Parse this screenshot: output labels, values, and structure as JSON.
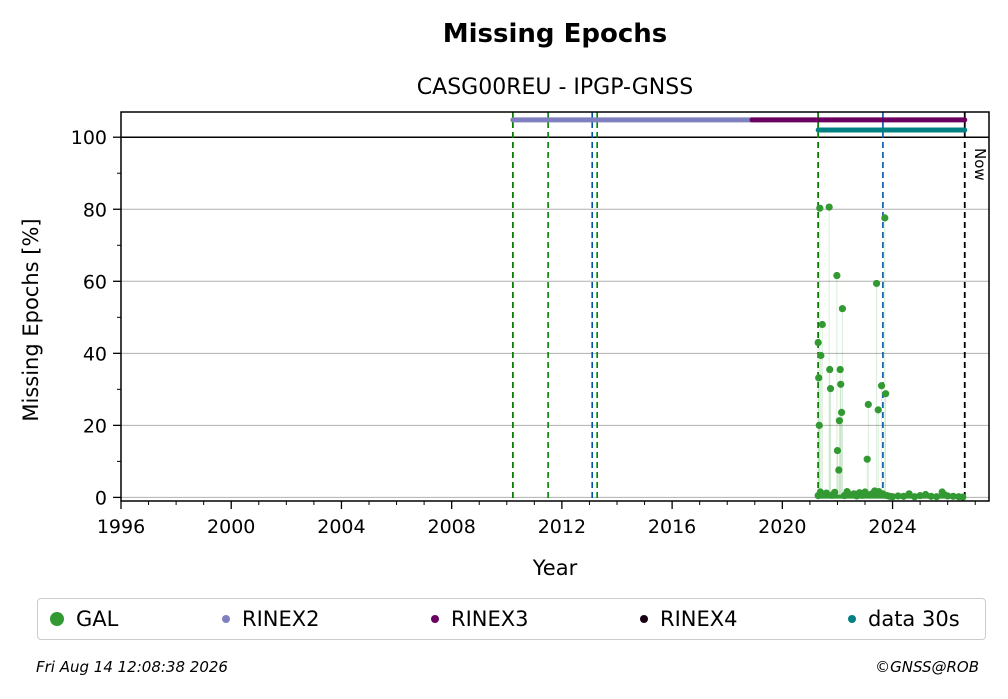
{
  "chart_data": {
    "type": "scatter",
    "title": "Missing Epochs",
    "subtitle": "CASG00REU - IPGP-GNSS",
    "xlabel": "Year",
    "ylabel": "Missing Epochs [%]",
    "xlim": [
      1996,
      2027.5
    ],
    "ylim": [
      -1,
      107
    ],
    "xticks": [
      1996,
      2000,
      2004,
      2008,
      2012,
      2016,
      2020,
      2024
    ],
    "yticks": [
      0,
      20,
      40,
      60,
      80,
      100
    ],
    "grid": "horizontal",
    "now_label": "Now",
    "now_year": 2026.62,
    "vertical_lines": [
      {
        "x": 2010.22,
        "color": "#cc0000"
      },
      {
        "x": 2010.22,
        "color": "#008000"
      },
      {
        "x": 2011.5,
        "color": "#008000"
      },
      {
        "x": 2013.1,
        "color": "#0055aa"
      },
      {
        "x": 2013.28,
        "color": "#008000"
      },
      {
        "x": 2021.3,
        "color": "#cc0000"
      },
      {
        "x": 2021.3,
        "color": "#008000"
      },
      {
        "x": 2023.65,
        "color": "#0055aa"
      }
    ],
    "bars": [
      {
        "name": "RINEX2",
        "y": 104.8,
        "x0": 2010.22,
        "x1": 2018.9,
        "color": "#8080c0"
      },
      {
        "name": "RINEX3",
        "y": 104.8,
        "x0": 2018.9,
        "x1": 2026.62,
        "color": "#6a0060"
      },
      {
        "name": "data 30s",
        "y": 102.0,
        "x0": 2021.3,
        "x1": 2026.62,
        "color": "#008080"
      }
    ],
    "series": [
      {
        "name": "GAL",
        "color": "#339933",
        "points": [
          [
            2021.3,
            43.0
          ],
          [
            2021.32,
            33.2
          ],
          [
            2021.34,
            20.0
          ],
          [
            2021.36,
            80.3
          ],
          [
            2021.4,
            39.4
          ],
          [
            2021.45,
            48.0
          ],
          [
            2021.7,
            80.6
          ],
          [
            2021.72,
            35.5
          ],
          [
            2021.75,
            30.2
          ],
          [
            2021.98,
            61.6
          ],
          [
            2022.0,
            13.0
          ],
          [
            2022.05,
            7.6
          ],
          [
            2022.07,
            21.3
          ],
          [
            2022.1,
            35.5
          ],
          [
            2022.12,
            31.4
          ],
          [
            2022.15,
            23.6
          ],
          [
            2022.18,
            52.4
          ],
          [
            2023.08,
            10.6
          ],
          [
            2023.12,
            25.8
          ],
          [
            2023.42,
            59.4
          ],
          [
            2023.48,
            24.3
          ],
          [
            2023.6,
            31.0
          ],
          [
            2023.72,
            77.6
          ],
          [
            2023.75,
            28.8
          ],
          [
            2021.3,
            0.5
          ],
          [
            2021.38,
            1.5
          ],
          [
            2021.5,
            0.8
          ],
          [
            2021.6,
            1.2
          ],
          [
            2021.8,
            0.6
          ],
          [
            2021.9,
            1.4
          ],
          [
            2022.25,
            0.5
          ],
          [
            2022.35,
            1.6
          ],
          [
            2022.5,
            0.7
          ],
          [
            2022.6,
            1.0
          ],
          [
            2022.7,
            0.4
          ],
          [
            2022.8,
            1.3
          ],
          [
            2022.9,
            0.6
          ],
          [
            2023.0,
            1.5
          ],
          [
            2023.2,
            0.8
          ],
          [
            2023.3,
            1.2
          ],
          [
            2023.35,
            1.8
          ],
          [
            2023.5,
            1.6
          ],
          [
            2023.55,
            0.9
          ],
          [
            2023.65,
            1.0
          ],
          [
            2023.8,
            0.5
          ],
          [
            2023.9,
            0.3
          ],
          [
            2024.0,
            0.2
          ],
          [
            2024.2,
            0.4
          ],
          [
            2024.4,
            0.3
          ],
          [
            2024.6,
            1.0
          ],
          [
            2024.8,
            0.2
          ],
          [
            2025.0,
            0.5
          ],
          [
            2025.2,
            0.8
          ],
          [
            2025.4,
            0.3
          ],
          [
            2025.6,
            0.2
          ],
          [
            2025.8,
            1.5
          ],
          [
            2025.9,
            0.7
          ],
          [
            2026.0,
            0.4
          ],
          [
            2026.2,
            0.3
          ],
          [
            2026.4,
            0.2
          ],
          [
            2026.55,
            0.1
          ]
        ]
      }
    ],
    "legend": [
      {
        "label": "GAL",
        "color": "#339933"
      },
      {
        "label": "RINEX2",
        "color": "#8080c0"
      },
      {
        "label": "RINEX3",
        "color": "#6a0060"
      },
      {
        "label": "RINEX4",
        "color": "#1a0015"
      },
      {
        "label": "data 30s",
        "color": "#008080"
      }
    ],
    "legend_position": "bottom"
  },
  "footer": {
    "timestamp": "Fri Aug 14 12:08:38 2026",
    "copyright": "©GNSS@ROB"
  }
}
